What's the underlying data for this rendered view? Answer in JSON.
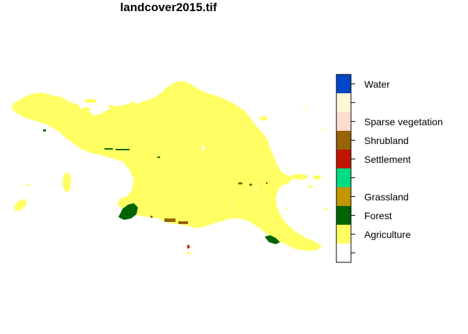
{
  "title": "landcover2015.tif",
  "legend": {
    "classes": [
      {
        "label": "",
        "color": "#ffffff"
      },
      {
        "label": "Agriculture",
        "color": "#ffff64"
      },
      {
        "label": "Forest",
        "color": "#006400"
      },
      {
        "label": "Grassland",
        "color": "#c39600"
      },
      {
        "label": "",
        "color": "#00dc82"
      },
      {
        "label": "Settlement",
        "color": "#c31400"
      },
      {
        "label": "Shrubland",
        "color": "#966400"
      },
      {
        "label": "Sparse vegetation",
        "color": "#ffdcd2"
      },
      {
        "label": "",
        "color": "#fff5d7"
      },
      {
        "label": "Water",
        "color": "#0046c8"
      }
    ]
  },
  "map": {
    "dominant_class_color": "#ffff64",
    "forest_color": "#006400",
    "shrubland_color": "#966400",
    "settlement_color": "#c31400"
  }
}
